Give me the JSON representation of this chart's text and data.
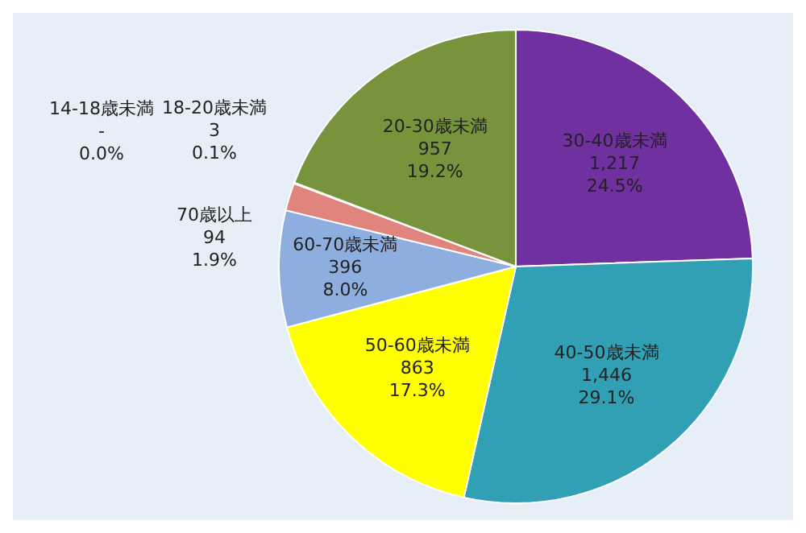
{
  "chart_data": {
    "type": "pie",
    "categories": [
      "30-40歳未満",
      "40-50歳未満",
      "50-60歳未満",
      "60-70歳未満",
      "70歳以上",
      "14-18歳未満",
      "18-20歳未満",
      "20-30歳未満"
    ],
    "values": [
      1217,
      1446,
      863,
      396,
      94,
      0,
      3,
      957
    ],
    "colors": [
      "#7030a0",
      "#31a0b5",
      "#ffff00",
      "#8eaee0",
      "#e0857e",
      "#c0504d",
      "#c0504d",
      "#77933c"
    ],
    "value_labels": [
      "1,217\n24.5%",
      "1,446\n29.1%",
      "863\n17.3%",
      "396\n8.0%",
      "94\n1.9%",
      "-\n0.0%",
      "3\n0.1%",
      "957\n19.2%"
    ],
    "legend": false
  }
}
